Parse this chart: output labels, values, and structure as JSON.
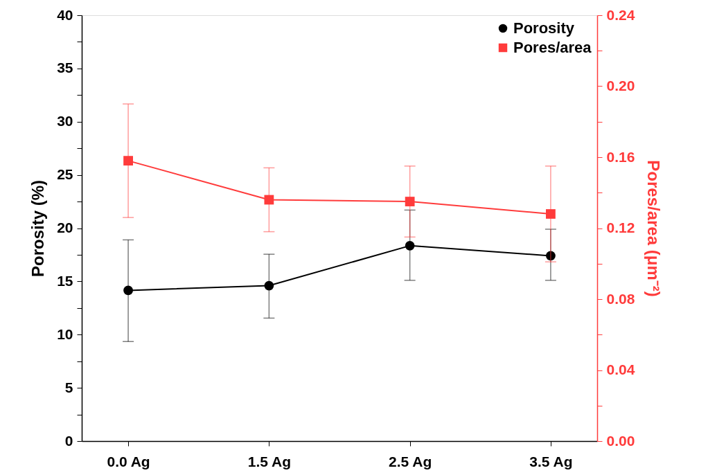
{
  "chart_data": {
    "type": "line",
    "categories": [
      "0.0 Ag",
      "1.5 Ag",
      "2.5 Ag",
      "3.5 Ag"
    ],
    "ylabel": "Porosity (%)",
    "y2label": "Pores/area (μm⁻²)",
    "ylim": [
      0,
      40
    ],
    "yticks": [
      0,
      {
        "value": 2.5,
        "label": null
      },
      5,
      {
        "value": 7.5,
        "label": null
      },
      10,
      {
        "value": 12.5,
        "label": null
      },
      15,
      {
        "value": 17.5,
        "label": null
      },
      20,
      {
        "value": 22.5,
        "label": null
      },
      25,
      {
        "value": 27.5,
        "label": null
      },
      30,
      {
        "value": 32.5,
        "label": null
      },
      35,
      {
        "value": 37.5,
        "label": null
      },
      40
    ],
    "y2lim": [
      0,
      0.24
    ],
    "y2ticks": [
      {
        "value": 0,
        "label": "0.00"
      },
      {
        "value": 0.02,
        "label": null
      },
      {
        "value": 0.04,
        "label": "0.04"
      },
      {
        "value": 0.06,
        "label": null
      },
      {
        "value": 0.08,
        "label": "0.08"
      },
      {
        "value": 0.1,
        "label": null
      },
      {
        "value": 0.12,
        "label": "0.12"
      },
      {
        "value": 0.14,
        "label": null
      },
      {
        "value": 0.16,
        "label": "0.16"
      },
      {
        "value": 0.18,
        "label": null
      },
      {
        "value": 0.2,
        "label": "0.20"
      },
      {
        "value": 0.22,
        "label": null
      },
      {
        "value": 0.24,
        "label": "0.24"
      }
    ],
    "grid": false,
    "legend": "top right",
    "line_style": "solid",
    "series": [
      {
        "name": "Porosity",
        "color": "#000000",
        "marker": "circle",
        "values": [
          14.15,
          14.6,
          18.35,
          17.4
        ],
        "errors": [
          [
            9.35,
            18.9
          ],
          [
            11.55,
            17.55
          ],
          [
            15.1,
            21.7
          ],
          [
            15.1,
            19.9
          ]
        ]
      },
      {
        "name": "Pores/area",
        "color": "#ff3b3b",
        "marker": "square",
        "axis": "y2",
        "values": [
          0.158,
          0.136,
          0.135,
          0.128
        ],
        "errors": [
          [
            0.126,
            0.19
          ],
          [
            0.118,
            0.154
          ],
          [
            0.115,
            0.155
          ],
          [
            0.101,
            0.155
          ]
        ]
      }
    ]
  }
}
